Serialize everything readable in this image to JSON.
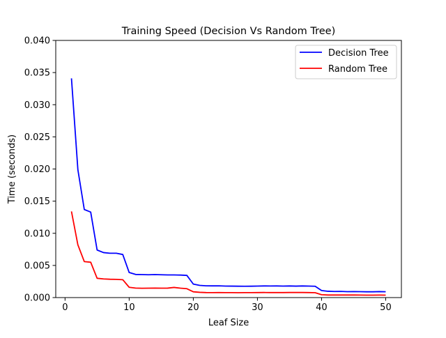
{
  "chart_data": {
    "type": "line",
    "title": "Training Speed (Decision Vs Random Tree)",
    "xlabel": "Leaf Size",
    "ylabel": "Time (seconds)",
    "xlim": [
      -1.45,
      52.45
    ],
    "ylim": [
      0,
      0.04
    ],
    "xticks": [
      0,
      10,
      20,
      30,
      40,
      50
    ],
    "xtick_labels": [
      "0",
      "10",
      "20",
      "30",
      "40",
      "50"
    ],
    "yticks": [
      0,
      0.005,
      0.01,
      0.015,
      0.02,
      0.025,
      0.03,
      0.035,
      0.04
    ],
    "ytick_labels": [
      "0.000",
      "0.005",
      "0.010",
      "0.015",
      "0.020",
      "0.025",
      "0.030",
      "0.035",
      "0.040"
    ],
    "grid": false,
    "legend_position": "top-right",
    "x": [
      1,
      2,
      3,
      4,
      5,
      6,
      7,
      8,
      9,
      10,
      11,
      12,
      13,
      14,
      15,
      16,
      17,
      18,
      19,
      20,
      21,
      22,
      23,
      24,
      25,
      26,
      27,
      28,
      29,
      30,
      31,
      32,
      33,
      34,
      35,
      36,
      37,
      38,
      39,
      40,
      41,
      42,
      43,
      44,
      45,
      46,
      47,
      48,
      49,
      50
    ],
    "series": [
      {
        "name": "Decision Tree",
        "color": "#0000ff",
        "values": [
          0.0341,
          0.0199,
          0.0137,
          0.0133,
          0.0074,
          0.007,
          0.0069,
          0.0069,
          0.0067,
          0.0039,
          0.0036,
          0.00358,
          0.00355,
          0.00358,
          0.00355,
          0.00352,
          0.00352,
          0.0035,
          0.00345,
          0.0021,
          0.0019,
          0.00183,
          0.00182,
          0.00183,
          0.00179,
          0.00178,
          0.00177,
          0.00176,
          0.00177,
          0.00179,
          0.00181,
          0.0018,
          0.00181,
          0.00179,
          0.00181,
          0.00178,
          0.00181,
          0.00179,
          0.00176,
          0.0011,
          0.00098,
          0.00095,
          0.00096,
          0.00092,
          0.00093,
          0.00092,
          0.0009,
          0.0009,
          0.00093,
          0.00091
        ]
      },
      {
        "name": "Random Tree",
        "color": "#ff0000",
        "values": [
          0.0134,
          0.0082,
          0.0056,
          0.0055,
          0.003,
          0.0029,
          0.00285,
          0.00283,
          0.00278,
          0.0016,
          0.00148,
          0.00145,
          0.00146,
          0.00147,
          0.00146,
          0.00147,
          0.00158,
          0.00146,
          0.00138,
          0.0009,
          0.00082,
          0.00078,
          0.00077,
          0.00078,
          0.00077,
          0.00077,
          0.00076,
          0.00077,
          0.00077,
          0.00078,
          0.00079,
          0.00078,
          0.00078,
          0.00078,
          0.00079,
          0.00079,
          0.00079,
          0.00078,
          0.00076,
          0.00045,
          0.0004,
          0.0004,
          0.0004,
          0.0004,
          0.0004,
          0.00039,
          0.00038,
          0.00038,
          0.00039,
          0.00038
        ]
      }
    ]
  }
}
